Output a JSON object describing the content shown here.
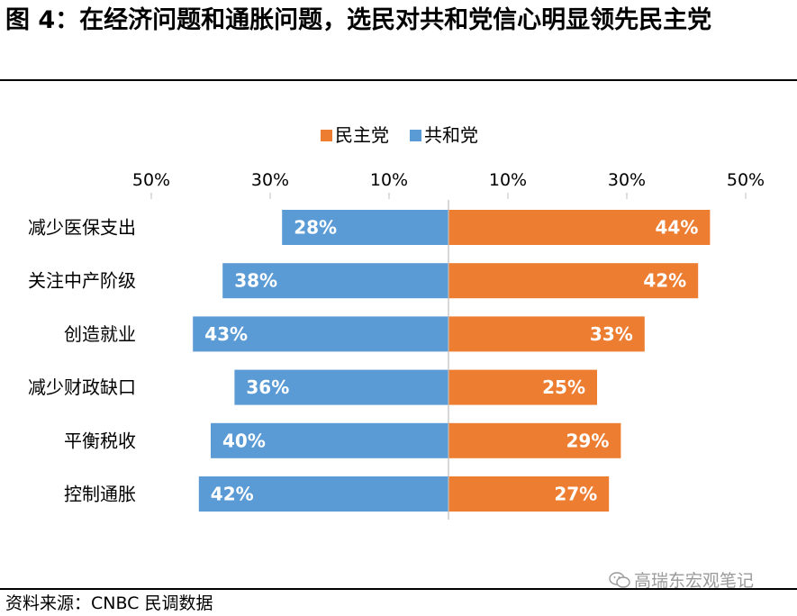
{
  "figure": {
    "title": "图 4：在经济问题和通胀问题，选民对共和党信心明显领先民主党",
    "source": "资料来源：CNBC 民调数据",
    "watermark": "高瑞东宏观笔记",
    "watermark_icon": "wechat-icon"
  },
  "chart_data": {
    "type": "bar",
    "orientation": "horizontal-diverging",
    "categories": [
      "减少医保支出",
      "关注中产阶级",
      "创造就业",
      "减少财政缺口",
      "平衡税收",
      "控制通胀"
    ],
    "series": [
      {
        "name": "民主党",
        "color": "#ED7D31",
        "side": "right",
        "values": [
          44,
          42,
          33,
          25,
          29,
          27
        ],
        "labels": [
          "44%",
          "42%",
          "33%",
          "25%",
          "29%",
          "27%"
        ]
      },
      {
        "name": "共和党",
        "color": "#5B9BD5",
        "side": "left",
        "values": [
          28,
          38,
          43,
          36,
          40,
          42
        ],
        "labels": [
          "28%",
          "38%",
          "43%",
          "36%",
          "40%",
          "42%"
        ]
      }
    ],
    "axis": {
      "range": [
        -50,
        50
      ],
      "ticks": [
        -50,
        -30,
        -10,
        10,
        30,
        50
      ],
      "tick_labels": [
        "50%",
        "30%",
        "10%",
        "10%",
        "30%",
        "50%"
      ],
      "position": "top"
    },
    "legend": {
      "position": "top-center"
    },
    "grid": false
  }
}
